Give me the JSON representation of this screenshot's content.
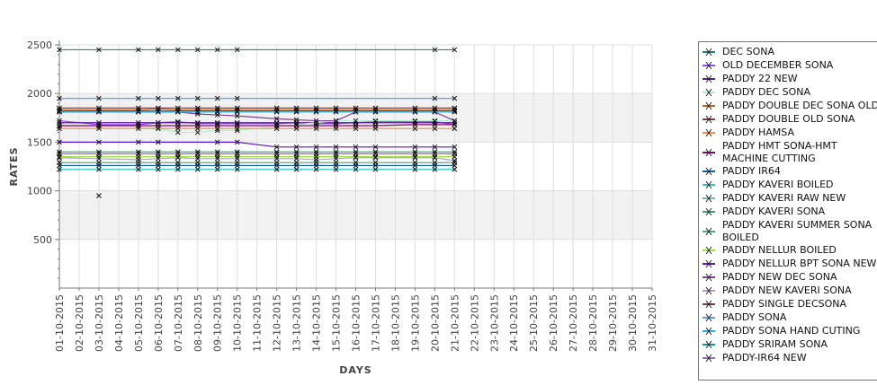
{
  "chart_data": {
    "type": "line",
    "title": "",
    "xlabel": "DAYS",
    "ylabel": "RATES",
    "ylim": [
      0,
      2500
    ],
    "yticks": [
      500,
      1000,
      1500,
      2000,
      2500
    ],
    "xticks": [
      "01-10-2015",
      "02-10-2015",
      "03-10-2015",
      "04-10-2015",
      "05-10-2015",
      "06-10-2015",
      "07-10-2015",
      "08-10-2015",
      "09-10-2015",
      "10-10-2015",
      "11-10-2015",
      "12-10-2015",
      "13-10-2015",
      "14-10-2015",
      "15-10-2015",
      "16-10-2015",
      "17-10-2015",
      "18-10-2015",
      "19-10-2015",
      "20-10-2015",
      "21-10-2015",
      "22-10-2015",
      "23-10-2015",
      "24-10-2015",
      "25-10-2015",
      "26-10-2015",
      "27-10-2015",
      "28-10-2015",
      "29-10-2015",
      "30-10-2015",
      "31-10-2015"
    ],
    "grid": true,
    "legend_position": "right",
    "series": [
      {
        "name": "DEC SONA",
        "color": "#1f7a7a",
        "days": [
          1,
          3,
          5,
          6,
          7,
          8,
          9,
          10,
          12,
          13,
          14,
          15,
          16,
          17,
          19,
          20,
          21
        ],
        "values": [
          1820,
          1820,
          1820,
          1820,
          1820,
          1820,
          1820,
          1820,
          1820,
          1820,
          1820,
          1820,
          1820,
          1820,
          1820,
          1820,
          1820
        ]
      },
      {
        "name": "OLD DECEMBER SONA",
        "color": "#a040ff",
        "days": [
          1,
          3,
          5,
          6,
          7,
          8,
          9,
          10,
          12,
          13,
          14,
          15,
          16,
          17,
          19,
          20,
          21
        ],
        "values": [
          1720,
          1680,
          1680,
          1700,
          1710,
          1690,
          1690,
          1690,
          1690,
          1700,
          1690,
          1690,
          1700,
          1710,
          1710,
          1710,
          1680
        ]
      },
      {
        "name": "PADDY 22 NEW",
        "color": "#5a1a9a",
        "days": [
          1,
          3,
          5,
          6,
          7,
          8,
          9,
          10,
          12,
          13,
          14,
          15,
          16,
          17,
          19,
          20,
          21
        ],
        "values": [
          1700,
          1700,
          1700,
          1700,
          1700,
          1700,
          1700,
          1700,
          1700,
          1700,
          1700,
          1700,
          1700,
          1700,
          1700,
          1700,
          1700
        ]
      },
      {
        "name": "PADDY DEC SONA",
        "color": "#b0f0c8",
        "days": [
          1,
          3,
          5,
          6,
          7,
          8,
          9,
          10,
          12,
          13,
          14,
          15,
          16,
          17,
          19,
          20,
          21
        ],
        "values": [
          1660,
          1660,
          1660,
          1640,
          1600,
          1600,
          1620,
          1620,
          1660,
          1680,
          1700,
          1720,
          1720,
          1720,
          1720,
          1720,
          1720
        ]
      },
      {
        "name": "PADDY DOUBLE DEC SONA OLD",
        "color": "#c06020",
        "days": [
          1,
          3,
          5,
          6,
          7,
          8,
          9,
          10,
          12,
          13,
          14,
          15,
          16,
          17,
          19,
          20,
          21
        ],
        "values": [
          1830,
          1830,
          1830,
          1840,
          1830,
          1830,
          1830,
          1830,
          1830,
          1830,
          1830,
          1830,
          1830,
          1830,
          1830,
          1830,
          1830
        ]
      },
      {
        "name": "PADDY DOUBLE OLD SONA",
        "color": "#804040",
        "days": [
          1,
          3,
          5,
          6,
          7,
          8,
          9,
          10,
          12,
          13,
          14,
          15,
          16,
          17,
          19,
          20,
          21
        ],
        "values": [
          1850,
          1850,
          1850,
          1850,
          1850,
          1850,
          1850,
          1850,
          1850,
          1850,
          1850,
          1850,
          1850,
          1850,
          1850,
          1850,
          1850
        ]
      },
      {
        "name": "PADDY HAMSA",
        "color": "#ff9040",
        "days": [
          1,
          3,
          5,
          6,
          7,
          8,
          9,
          10,
          12,
          13,
          14,
          15,
          16,
          17,
          19,
          20,
          21
        ],
        "values": [
          1640,
          1640,
          1640,
          1640,
          1640,
          1640,
          1640,
          1640,
          1640,
          1640,
          1640,
          1640,
          1640,
          1640,
          1640,
          1640,
          1640
        ]
      },
      {
        "name": "PADDY HMT SONA-HMT MACHINE CUTTING",
        "color": "#900070",
        "days": [
          1,
          3,
          5,
          6,
          7,
          8,
          9,
          10,
          12,
          13,
          14,
          15,
          16,
          17,
          19,
          20,
          21
        ],
        "values": [
          1670,
          1670,
          1670,
          1670,
          1670,
          1670,
          1670,
          1670,
          1670,
          1670,
          1670,
          1670,
          1670,
          1670,
          1680,
          1680,
          1680
        ]
      },
      {
        "name": "PADDY IR64",
        "color": "#1060a0",
        "days": [
          1,
          3,
          5,
          6,
          7,
          8,
          9,
          10,
          12,
          13,
          14,
          15,
          16,
          17,
          19,
          20,
          21
        ],
        "values": [
          1260,
          1260,
          1260,
          1260,
          1260,
          1260,
          1260,
          1260,
          1260,
          1260,
          1260,
          1260,
          1260,
          1260,
          1260,
          1260,
          1260
        ]
      },
      {
        "name": "PADDY KAVERI BOILED",
        "color": "#30c0c0",
        "days": [
          1,
          3,
          5,
          6,
          7,
          8,
          9,
          10,
          12,
          13,
          14,
          15,
          16,
          17,
          19,
          20,
          21
        ],
        "values": [
          1220,
          1220,
          1220,
          1220,
          1220,
          1220,
          1220,
          1220,
          1220,
          1220,
          1220,
          1220,
          1220,
          1220,
          1220,
          1220,
          1220
        ]
      },
      {
        "name": "PADDY KAVERI RAW NEW",
        "color": "#80b0b0",
        "days": [
          3
        ],
        "values": [
          950
        ]
      },
      {
        "name": "PADDY KAVERI SONA",
        "color": "#40a070",
        "days": [
          1,
          3,
          5,
          6,
          7,
          8,
          9,
          10,
          12,
          13,
          14,
          15,
          16,
          17,
          19,
          20,
          21
        ],
        "values": [
          1290,
          1290,
          1290,
          1290,
          1290,
          1290,
          1290,
          1290,
          1290,
          1290,
          1290,
          1290,
          1290,
          1290,
          1290,
          1290,
          1290
        ]
      },
      {
        "name": "PADDY KAVERI SUMMER SONA BOILED",
        "color": "#40b080",
        "days": [
          1,
          3,
          5,
          6,
          7,
          8,
          9,
          10,
          12,
          13,
          14,
          15,
          16,
          17,
          19,
          20,
          21
        ],
        "values": [
          1400,
          1400,
          1400,
          1400,
          1400,
          1400,
          1400,
          1400,
          1400,
          1400,
          1400,
          1400,
          1400,
          1400,
          1400,
          1400,
          1400
        ]
      },
      {
        "name": "PADDY NELLUR BOILED",
        "color": "#a0e040",
        "days": [
          1,
          3,
          5,
          6,
          7,
          8,
          9,
          10,
          12,
          13,
          14,
          15,
          16,
          17,
          19,
          20,
          21
        ],
        "values": [
          1350,
          1350,
          1350,
          1350,
          1350,
          1350,
          1350,
          1350,
          1350,
          1350,
          1350,
          1350,
          1350,
          1350,
          1350,
          1350,
          1350
        ]
      },
      {
        "name": "PADDY NELLUR BPT SONA NEW",
        "color": "#6010d0",
        "days": [
          1,
          3,
          5,
          6,
          9,
          10,
          12,
          13,
          14,
          15,
          16,
          17,
          19,
          20,
          21
        ],
        "values": [
          1500,
          1500,
          1500,
          1500,
          1500,
          1500,
          1450,
          1450,
          1450,
          1450,
          1450,
          1450,
          1450,
          1450,
          1450
        ]
      },
      {
        "name": "PADDY NEW DEC SONA",
        "color": "#804090",
        "days": [
          1,
          3,
          5,
          6,
          7,
          8,
          9,
          10,
          12,
          13,
          14,
          15,
          16,
          17,
          19,
          20,
          21
        ],
        "values": [
          1810,
          1810,
          1810,
          1810,
          1810,
          1790,
          1780,
          1770,
          1740,
          1730,
          1720,
          1720,
          1810,
          1810,
          1810,
          1810,
          1720
        ]
      },
      {
        "name": "PADDY NEW KAVERI SONA",
        "color": "#b0a0d0",
        "days": [
          1,
          3,
          5,
          6,
          7,
          8,
          9,
          10,
          12,
          13,
          14,
          15,
          16,
          17,
          19,
          20,
          21
        ],
        "values": [
          1340,
          1330,
          1320,
          1330,
          1340,
          1330,
          1330,
          1330,
          1330,
          1330,
          1320,
          1330,
          1340,
          1340,
          1340,
          1340,
          1310
        ]
      },
      {
        "name": "PADDY SINGLE DECSONA",
        "color": "#704040",
        "days": [
          1,
          3,
          5,
          6,
          7,
          8,
          9,
          10,
          12,
          13,
          14,
          15,
          16,
          17,
          19,
          20,
          21
        ],
        "values": [
          1850,
          1850,
          1850,
          1850,
          1850,
          1850,
          1850,
          1850,
          1850,
          1850,
          1850,
          1850,
          1850,
          1850,
          1850,
          1850,
          1850
        ]
      },
      {
        "name": "PADDY SONA",
        "color": "#60a0f0",
        "days": [
          1,
          3,
          5,
          6,
          7,
          8,
          9,
          10,
          20,
          21
        ],
        "values": [
          1950,
          1950,
          1950,
          1950,
          1950,
          1950,
          1950,
          1950,
          1950,
          1950
        ]
      },
      {
        "name": "PADDY SONA HAND CUTING",
        "color": "#20b0e0",
        "days": [
          1,
          3,
          5,
          6,
          7,
          8,
          9,
          10,
          12,
          13,
          14,
          15,
          16,
          17,
          19,
          20,
          21
        ],
        "values": [
          1810,
          1810,
          1810,
          1810,
          1810,
          1810,
          1810,
          1810,
          1810,
          1810,
          1810,
          1810,
          1810,
          1810,
          1810,
          1810,
          1810
        ]
      },
      {
        "name": "PADDY SRIRAM SONA",
        "color": "#1090a0",
        "days": [
          1,
          3,
          5,
          6,
          7,
          8,
          9,
          10,
          20,
          21
        ],
        "values": [
          2450,
          2450,
          2450,
          2450,
          2450,
          2450,
          2450,
          2450,
          2450,
          2450
        ]
      },
      {
        "name": "PADDY-IR64 NEW",
        "color": "#9070b0",
        "days": [
          1,
          3,
          5,
          6,
          7,
          8,
          9,
          10,
          12,
          13,
          14,
          15,
          16,
          17,
          19,
          20,
          21
        ],
        "values": [
          1380,
          1380,
          1380,
          1380,
          1380,
          1380,
          1380,
          1380,
          1380,
          1380,
          1380,
          1380,
          1380,
          1380,
          1380,
          1380,
          1380
        ]
      }
    ]
  }
}
